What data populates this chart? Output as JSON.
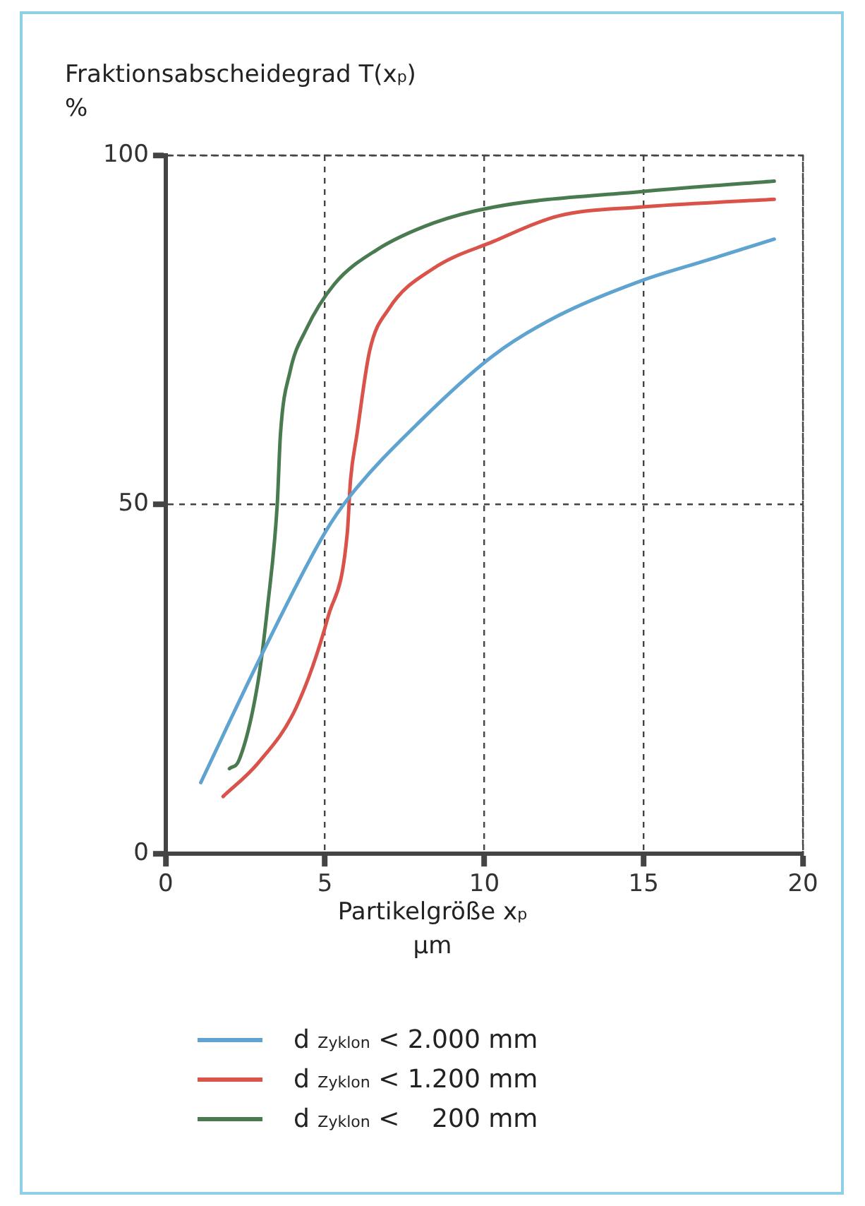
{
  "chart_data": {
    "type": "line",
    "ylabel": "Fraktionsabscheidegrad T(x$_{p}$)\n%",
    "xlabel": "Partikelgröße x$_{p}$\nµm",
    "xlim": [
      0,
      20
    ],
    "xticks": [
      0,
      5,
      10,
      15,
      20
    ],
    "ylim": [
      0,
      100
    ],
    "yticks": [
      0,
      50,
      100
    ],
    "grid": true,
    "legend": "bottom",
    "marker": "none",
    "line_style": "solid",
    "series": [
      {
        "name": "d $_{Zyklon}$ < 2.000 mm",
        "color": "#5fa3d0",
        "x": [
          1.1,
          3.0,
          5.0,
          5.8,
          8.0,
          10.3,
          12.3,
          14.9,
          17.0,
          19.1
        ],
        "values": [
          10.2,
          28.4,
          46,
          51.3,
          62,
          71.4,
          77,
          82,
          85,
          88
        ]
      },
      {
        "name": "d $_{Zyklon}$ < 1.200 mm",
        "color": "#d9534a",
        "x": [
          1.8,
          2.9,
          4.1,
          5.1,
          5.7,
          5.8,
          6.0,
          6.4,
          7.0,
          8.4,
          10.3,
          12.3,
          14.9,
          19.1
        ],
        "values": [
          8.2,
          13,
          21,
          34,
          46,
          53.5,
          60,
          72,
          78,
          83.8,
          87.7,
          91.3,
          92.6,
          93.7
        ]
      },
      {
        "name": "d $_{Zyklon}$ <    200 mm",
        "color": "#4a7a50",
        "x": [
          2.0,
          2.3,
          2.9,
          3.2,
          3.5,
          3.6,
          3.9,
          4.4,
          5.3,
          6.6,
          8.4,
          10.3,
          14.9,
          19.1
        ],
        "values": [
          12.2,
          13.4,
          24.7,
          35.5,
          50,
          60,
          69,
          75,
          81.6,
          86.4,
          90.3,
          92.6,
          94.8,
          96.3
        ]
      }
    ]
  }
}
